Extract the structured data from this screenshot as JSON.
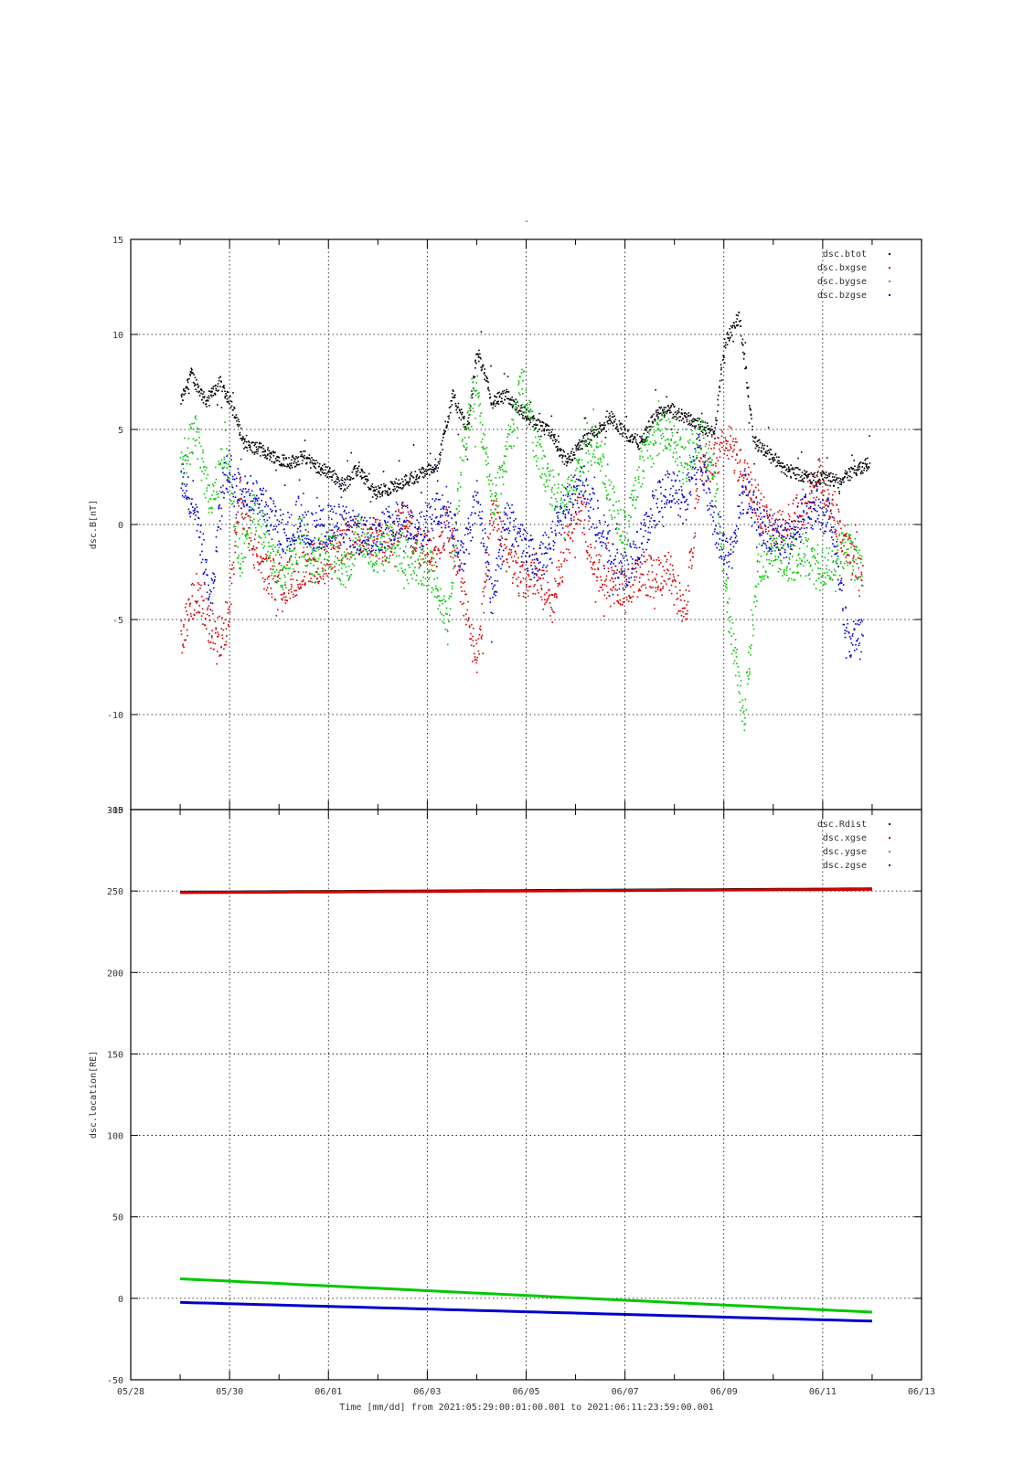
{
  "title": "-",
  "colors": {
    "black": "#000000",
    "red": "#d40000",
    "green": "#00c800",
    "blue": "#0000cc",
    "grid": "#000000"
  },
  "chart_data": [
    {
      "type": "scatter",
      "ylabel": "dsc.B[nT]",
      "ylim": [
        -15,
        15
      ],
      "yticks": [
        -15,
        -10,
        -5,
        0,
        5,
        10,
        15
      ],
      "xlim": [
        "05/28",
        "06/13"
      ],
      "xticks": [
        "05/28",
        "05/30",
        "06/01",
        "06/03",
        "06/05",
        "06/07",
        "06/09",
        "06/11",
        "06/13"
      ],
      "grid": true,
      "legend_position": "top-right",
      "series": [
        {
          "name": "dsc.btot",
          "color": "black",
          "x_days": [
            1.0,
            1.2,
            1.5,
            1.8,
            2.0,
            2.3,
            2.6,
            2.9,
            3.2,
            3.5,
            3.8,
            4.0,
            4.3,
            4.6,
            4.9,
            5.2,
            5.5,
            5.8,
            6.2,
            6.5,
            6.8,
            7.0,
            7.3,
            7.6,
            7.9,
            8.2,
            8.5,
            8.8,
            9.1,
            9.4,
            9.7,
            10.0,
            10.3,
            10.6,
            10.9,
            11.2,
            11.5,
            11.8,
            12.0,
            12.3,
            12.6,
            12.9,
            13.2,
            13.5,
            13.8,
            14.0,
            14.3,
            14.6,
            14.95
          ],
          "values": [
            6.5,
            8.0,
            6.5,
            7.5,
            6.5,
            4.2,
            4.0,
            3.6,
            3.3,
            3.6,
            3.0,
            2.8,
            2.1,
            3.0,
            1.7,
            1.9,
            2.3,
            2.6,
            3.2,
            6.8,
            5.0,
            9.2,
            6.5,
            6.8,
            6.0,
            5.3,
            4.8,
            3.3,
            4.3,
            4.9,
            5.7,
            4.8,
            4.3,
            5.8,
            6.0,
            5.7,
            5.3,
            4.8,
            9.5,
            11.0,
            4.4,
            3.8,
            3.0,
            2.7,
            2.4,
            2.5,
            2.3,
            2.8,
            3.3
          ]
        },
        {
          "name": "dsc.bxgse",
          "color": "red",
          "x_days": [
            1.0,
            1.3,
            1.6,
            1.9,
            2.2,
            2.5,
            2.8,
            3.1,
            3.4,
            3.7,
            4.0,
            4.3,
            4.6,
            4.9,
            5.2,
            5.5,
            5.8,
            6.1,
            6.4,
            6.7,
            7.0,
            7.3,
            7.6,
            7.9,
            8.2,
            8.5,
            8.8,
            9.1,
            9.4,
            9.7,
            10.0,
            10.3,
            10.6,
            10.9,
            11.2,
            11.5,
            11.8,
            12.1,
            12.4,
            12.7,
            13.0,
            13.3,
            13.6,
            13.9,
            14.2,
            14.5,
            14.8
          ],
          "values": [
            -6.0,
            -3.5,
            -5.5,
            -6.0,
            1.5,
            -1.5,
            -2.8,
            -3.0,
            -2.5,
            -2.0,
            -2.0,
            -0.8,
            -0.5,
            -0.5,
            -1.0,
            0.5,
            -1.0,
            -1.5,
            0.0,
            -3.5,
            -7.5,
            1.0,
            -1.5,
            -3.0,
            -2.5,
            -4.5,
            -1.0,
            1.0,
            -2.5,
            -3.0,
            -3.5,
            -2.5,
            -2.8,
            -2.5,
            -5.0,
            3.0,
            3.5,
            4.5,
            2.5,
            1.0,
            -0.5,
            0.0,
            1.0,
            2.5,
            1.0,
            -1.5,
            -3.0
          ]
        },
        {
          "name": "dsc.bygse",
          "color": "green",
          "x_days": [
            1.0,
            1.3,
            1.6,
            1.9,
            2.2,
            2.5,
            2.8,
            3.1,
            3.4,
            3.7,
            4.0,
            4.3,
            4.6,
            4.9,
            5.2,
            5.5,
            5.8,
            6.1,
            6.4,
            6.7,
            7.0,
            7.3,
            7.6,
            7.9,
            8.2,
            8.5,
            8.8,
            9.1,
            9.4,
            9.7,
            10.0,
            10.3,
            10.6,
            10.9,
            11.2,
            11.5,
            11.8,
            12.1,
            12.4,
            12.7,
            13.0,
            13.3,
            13.6,
            13.9,
            14.2,
            14.5,
            14.8
          ],
          "values": [
            3.0,
            5.0,
            1.0,
            4.0,
            -2.0,
            1.0,
            -1.5,
            -2.5,
            -0.5,
            -2.0,
            -1.0,
            -2.5,
            -0.5,
            -1.5,
            -1.0,
            -1.5,
            -2.0,
            -2.5,
            -5.5,
            4.0,
            7.0,
            1.0,
            3.5,
            7.5,
            4.0,
            2.0,
            1.5,
            3.0,
            4.5,
            1.5,
            -0.5,
            3.0,
            4.5,
            5.0,
            3.0,
            5.0,
            2.5,
            -5.0,
            -10.0,
            -2.0,
            -1.5,
            -2.0,
            -1.5,
            -2.5,
            -2.0,
            -1.0,
            -2.5
          ]
        },
        {
          "name": "dsc.bzgse",
          "color": "blue",
          "x_days": [
            1.0,
            1.3,
            1.6,
            1.9,
            2.2,
            2.5,
            2.8,
            3.1,
            3.4,
            3.7,
            4.0,
            4.3,
            4.6,
            4.9,
            5.2,
            5.5,
            5.8,
            6.1,
            6.4,
            6.7,
            7.0,
            7.3,
            7.6,
            7.9,
            8.2,
            8.5,
            8.8,
            9.1,
            9.4,
            9.7,
            10.0,
            10.3,
            10.6,
            10.9,
            11.2,
            11.5,
            11.8,
            12.1,
            12.4,
            12.7,
            13.0,
            13.3,
            13.6,
            13.9,
            14.2,
            14.5,
            14.8
          ],
          "values": [
            2.5,
            1.0,
            -4.0,
            3.0,
            2.0,
            1.5,
            0.5,
            -0.5,
            0.5,
            -0.5,
            0.0,
            0.0,
            -0.5,
            -0.5,
            0.0,
            0.5,
            -0.5,
            0.5,
            1.0,
            -2.0,
            1.5,
            -4.0,
            0.5,
            -1.0,
            -2.0,
            -1.0,
            1.0,
            2.0,
            0.5,
            -1.5,
            -2.5,
            -1.0,
            1.0,
            2.0,
            1.0,
            4.0,
            0.0,
            -2.0,
            2.0,
            0.0,
            -0.5,
            -1.0,
            0.5,
            1.0,
            0.0,
            -6.0,
            -6.0
          ]
        }
      ]
    },
    {
      "type": "scatter",
      "ylabel": "dsc.location[RE]",
      "ylim": [
        -50,
        300
      ],
      "yticks": [
        -50,
        0,
        50,
        100,
        150,
        200,
        250,
        300
      ],
      "xlim": [
        "05/28",
        "06/13"
      ],
      "xticks": [
        "05/28",
        "05/30",
        "06/01",
        "06/03",
        "06/05",
        "06/07",
        "06/09",
        "06/11",
        "06/13"
      ],
      "xlabel": "Time [mm/dd]  from 2021:05:29:00:01:00.001  to  2021:06:11:23:59:00.001",
      "grid": true,
      "legend_position": "top-right",
      "series": [
        {
          "name": "dsc.Rdist",
          "color": "black",
          "x_days": [
            1.0,
            15.0
          ],
          "values": [
            249.3,
            251.3
          ]
        },
        {
          "name": "dsc.xgse",
          "color": "red",
          "x_days": [
            1.0,
            15.0
          ],
          "values": [
            249.0,
            251.0
          ]
        },
        {
          "name": "dsc.ygse",
          "color": "green",
          "x_days": [
            1.0,
            15.0
          ],
          "values": [
            12.0,
            -8.5
          ]
        },
        {
          "name": "dsc.zgse",
          "color": "blue",
          "x_days": [
            1.0,
            15.0
          ],
          "values": [
            -2.5,
            -14.0
          ]
        }
      ]
    }
  ]
}
